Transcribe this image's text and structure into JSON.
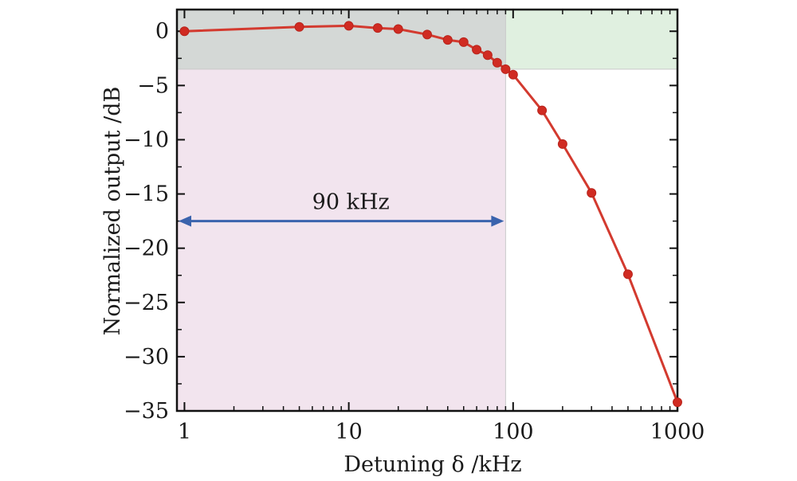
{
  "chart_data": {
    "type": "line",
    "xlabel": "Detuning δ /kHz",
    "ylabel": "Normalized output /dB",
    "xscale": "log",
    "xlim": [
      0.9,
      1000
    ],
    "ylim": [
      -35,
      2
    ],
    "xticks": [
      1,
      10,
      100,
      1000
    ],
    "xtick_labels": [
      "1",
      "10",
      "100",
      "1000"
    ],
    "yticks": [
      0,
      -5,
      -10,
      -15,
      -20,
      -25,
      -30,
      -35
    ],
    "ytick_labels": [
      "0",
      "−5",
      "−10",
      "−15",
      "−20",
      "−25",
      "−30",
      "−35"
    ],
    "grid": false,
    "series": [
      {
        "color": "#d33a2f",
        "marker_color": "#d02b22",
        "x": [
          1,
          5,
          10,
          15,
          20,
          30,
          40,
          50,
          60,
          70,
          80,
          90,
          100,
          150,
          200,
          300,
          500,
          1000
        ],
        "y": [
          0,
          0.4,
          0.5,
          0.3,
          0.2,
          -0.3,
          -0.8,
          -1.0,
          -1.7,
          -2.2,
          -2.9,
          -3.5,
          -4.0,
          -7.3,
          -10.4,
          -14.9,
          -22.4,
          -34.2
        ]
      }
    ],
    "regions": {
      "passband_color": "#f2e4ee",
      "upper_band_color": "#e0f0e0",
      "overlap_color": "#d4d8d6",
      "boundary_x": 90,
      "boundary_y": -3.5
    },
    "annotation": {
      "text": "90 kHz",
      "x_from": 0.9,
      "x_to": 90,
      "y": -17.5,
      "arrow_color": "#3a63ad"
    }
  }
}
